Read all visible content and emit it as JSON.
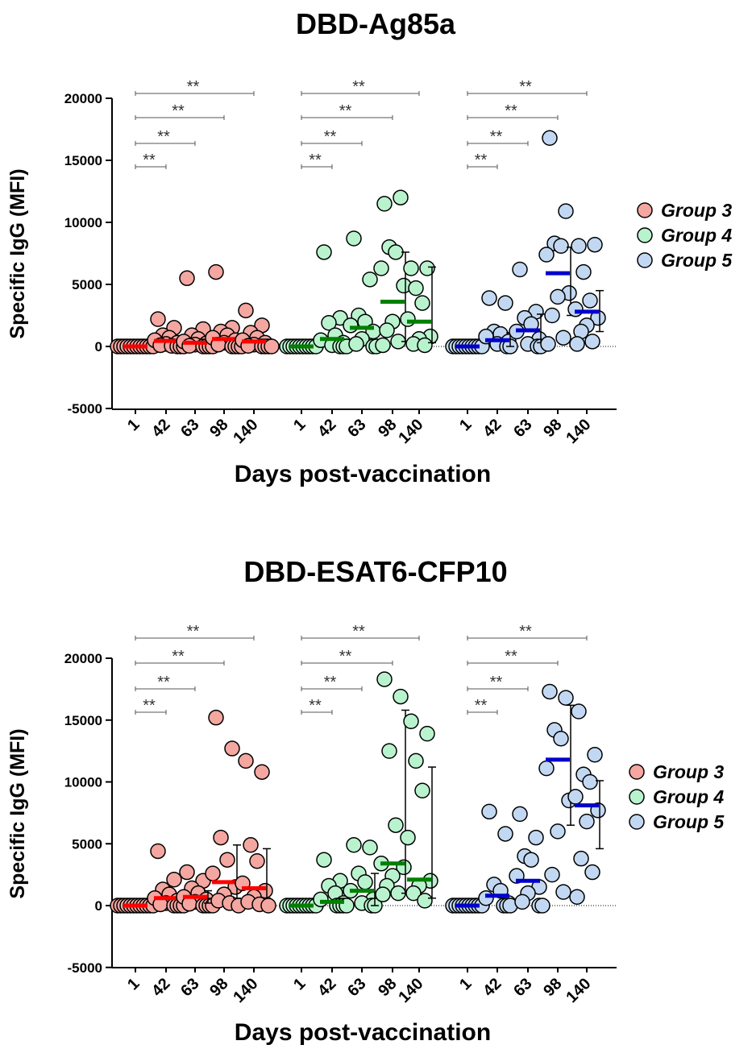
{
  "chart_data": [
    {
      "type": "scatter",
      "title": "DBD-Ag85a",
      "xlabel": "Days post-vaccination",
      "ylabel": "Specific IgG (MFI)",
      "ylim": [
        -5000,
        20000
      ],
      "yticks": [
        -5000,
        0,
        5000,
        10000,
        15000,
        20000
      ],
      "categories": [
        "1",
        "42",
        "63",
        "98",
        "140"
      ],
      "legend": {
        "position": "right",
        "entries": [
          "Group 3",
          "Group 4",
          "Group 5"
        ]
      },
      "significance": {
        "label": "**",
        "comparisons": [
          "1 vs 42",
          "1 vs 63",
          "1 vs 98",
          "1 vs 140"
        ]
      },
      "series": [
        {
          "name": "Group 3",
          "color": "#f4a6a0",
          "median_color": "#ff0000",
          "points": [
            [
              0,
              0,
              0,
              0,
              0,
              0,
              0,
              0,
              0,
              0,
              0,
              0
            ],
            [
              2200,
              1500,
              900,
              700,
              500,
              300,
              200,
              100,
              50,
              0,
              0,
              0
            ],
            [
              5500,
              1400,
              900,
              600,
              400,
              250,
              150,
              50,
              0,
              0,
              0,
              0
            ],
            [
              6000,
              1500,
              1200,
              900,
              700,
              500,
              300,
              150,
              0,
              0,
              0,
              0
            ],
            [
              2900,
              1700,
              1100,
              700,
              500,
              300,
              150,
              50,
              0,
              0,
              0,
              0
            ]
          ],
          "medians": [
            0,
            450,
            300,
            600,
            400
          ],
          "error": [
            null,
            null,
            null,
            null,
            null
          ]
        },
        {
          "name": "Group 4",
          "color": "#b9f3ce",
          "median_color": "#008000",
          "points": [
            [
              0,
              0,
              0,
              0,
              0,
              0,
              0,
              0,
              0,
              0
            ],
            [
              7600,
              2300,
              1900,
              900,
              500,
              300,
              100,
              0,
              0,
              0
            ],
            [
              8700,
              5400,
              2500,
              2000,
              1700,
              1200,
              600,
              200,
              0,
              0
            ],
            [
              11500,
              12000,
              8000,
              7600,
              6300,
              4900,
              2000,
              1300,
              400,
              100
            ],
            [
              6300,
              6300,
              4700,
              3500,
              2200,
              800,
              600,
              200,
              100
            ]
          ],
          "medians": [
            0,
            600,
            1500,
            3600,
            2000
          ],
          "error": [
            null,
            null,
            null,
            [
              400,
              7600
            ],
            [
              300,
              6400
            ]
          ]
        },
        {
          "name": "Group 5",
          "color": "#c2d8f2",
          "median_color": "#0000cc",
          "points": [
            [
              0,
              0,
              0,
              0,
              0,
              0,
              0,
              0,
              0,
              0
            ],
            [
              3900,
              3500,
              1200,
              1000,
              800,
              400,
              200,
              0,
              0
            ],
            [
              6200,
              2800,
              2300,
              1800,
              1200,
              600,
              200,
              0,
              0
            ],
            [
              16800,
              10900,
              8300,
              8100,
              7400,
              4300,
              4000,
              2500,
              700,
              200
            ],
            [
              8100,
              8200,
              6000,
              3700,
              3000,
              2300,
              1700,
              1200,
              400,
              200
            ]
          ],
          "medians": [
            0,
            500,
            1300,
            5900,
            2800
          ],
          "error": [
            null,
            [
              0,
              1100
            ],
            [
              300,
              2600
            ],
            [
              2500,
              8000
            ],
            [
              1200,
              4500
            ]
          ]
        }
      ]
    },
    {
      "type": "scatter",
      "title": "DBD-ESAT6-CFP10",
      "xlabel": "Days post-vaccination",
      "ylabel": "Specific IgG (MFI)",
      "ylim": [
        -5000,
        20000
      ],
      "yticks": [
        -5000,
        0,
        5000,
        10000,
        15000,
        20000
      ],
      "categories": [
        "1",
        "42",
        "63",
        "98",
        "140"
      ],
      "legend": {
        "position": "right",
        "entries": [
          "Group 3",
          "Group 4",
          "Group 5"
        ]
      },
      "significance": {
        "label": "**",
        "comparisons": [
          "1 vs 42",
          "1 vs 63",
          "1 vs 98",
          "1 vs 140"
        ]
      },
      "series": [
        {
          "name": "Group 3",
          "color": "#f4a6a0",
          "median_color": "#ff0000",
          "points": [
            [
              0,
              0,
              0,
              0,
              0,
              0,
              0,
              0,
              0,
              0,
              0,
              0
            ],
            [
              4400,
              2100,
              1300,
              900,
              600,
              400,
              200,
              100,
              0,
              0,
              0,
              0
            ],
            [
              2700,
              2000,
              1400,
              1000,
              700,
              500,
              300,
              150,
              0,
              0,
              0,
              0
            ],
            [
              15200,
              12700,
              5500,
              3700,
              2600,
              1500,
              900,
              400,
              200,
              0
            ],
            [
              11700,
              10800,
              4900,
              3600,
              1800,
              1200,
              700,
              300,
              100,
              0
            ]
          ],
          "medians": [
            0,
            600,
            700,
            1900,
            1400
          ],
          "error": [
            null,
            null,
            [
              200,
              1200
            ],
            [
              600,
              4900
            ],
            [
              600,
              4600
            ]
          ]
        },
        {
          "name": "Group 4",
          "color": "#b9f3ce",
          "median_color": "#008000",
          "points": [
            [
              0,
              0,
              0,
              0,
              0,
              0,
              0,
              0,
              0,
              0
            ],
            [
              3700,
              2000,
              1600,
              1000,
              500,
              200,
              0,
              0,
              0,
              0
            ],
            [
              4900,
              4700,
              2600,
              1900,
              1200,
              500,
              200,
              0,
              0
            ],
            [
              18300,
              16900,
              12500,
              6500,
              3400,
              3100,
              2400,
              1600,
              1000,
              900
            ],
            [
              14900,
              13900,
              11700,
              9300,
              5500,
              2000,
              1600,
              1000,
              400
            ]
          ],
          "medians": [
            0,
            300,
            1200,
            3400,
            2100
          ],
          "error": [
            null,
            null,
            [
              0,
              2600
            ],
            [
              1000,
              15800
            ],
            [
              600,
              11200
            ]
          ]
        },
        {
          "name": "Group 5",
          "color": "#c2d8f2",
          "median_color": "#0000cc",
          "points": [
            [
              0,
              0,
              0,
              0,
              0,
              0,
              0,
              0,
              0,
              0
            ],
            [
              7600,
              5800,
              1700,
              1200,
              600,
              200,
              0,
              0,
              0
            ],
            [
              7400,
              5500,
              4000,
              3700,
              2400,
              1500,
              1000,
              300,
              0,
              0
            ],
            [
              17300,
              16800,
              14200,
              13500,
              11100,
              8500,
              6000,
              2500,
              1100
            ],
            [
              15700,
              12200,
              10600,
              10000,
              8800,
              7700,
              6800,
              3800,
              2700,
              700
            ]
          ],
          "medians": [
            0,
            800,
            2000,
            11800,
            8100
          ],
          "error": [
            null,
            null,
            null,
            [
              6500,
              16200
            ],
            [
              4600,
              10100
            ]
          ]
        }
      ]
    }
  ]
}
